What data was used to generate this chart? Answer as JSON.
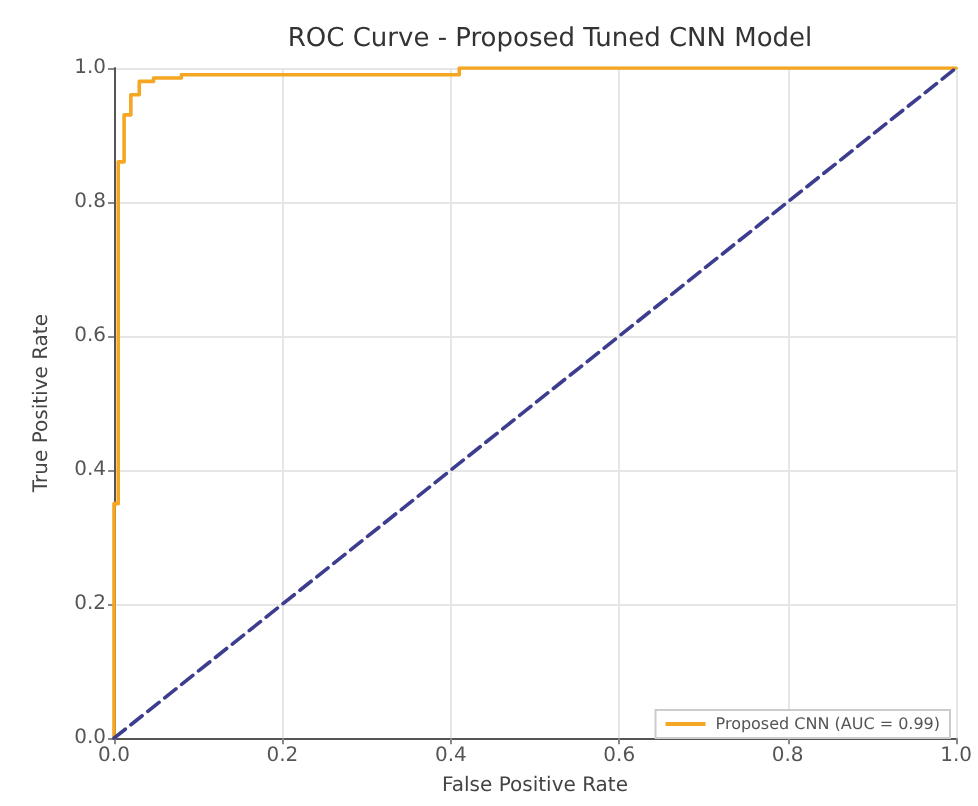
{
  "chart_data": {
    "type": "line",
    "title": "ROC Curve - Proposed Tuned CNN Model",
    "xlabel": "False Positive Rate",
    "ylabel": "True Positive Rate",
    "series": [
      {
        "name": "Proposed CNN (AUC = 0.99)",
        "color": "#f5a623",
        "x": [
          0,
          0,
          0.005,
          0.005,
          0.012,
          0.012,
          0.02,
          0.02,
          0.03,
          0.03,
          0.047,
          0.047,
          0.08,
          0.08,
          0.41,
          0.41,
          1
        ],
        "values": [
          0,
          0.35,
          0.35,
          0.86,
          0.86,
          0.93,
          0.93,
          0.96,
          0.96,
          0.98,
          0.98,
          0.985,
          0.985,
          0.99,
          0.99,
          1,
          1
        ],
        "line_style": "solid"
      },
      {
        "color": "#3d3d8f",
        "x": [
          0,
          1
        ],
        "values": [
          0,
          1
        ],
        "line_style": "dashed"
      }
    ],
    "xlim": [
      0,
      1
    ],
    "ylim": [
      0,
      1
    ],
    "xticks": [
      {
        "value": 0,
        "label": "0.0"
      },
      0.2,
      0.4,
      0.6,
      0.8,
      {
        "value": 1,
        "label": "1.0"
      }
    ],
    "yticks": [
      {
        "value": 0,
        "label": "0.0"
      },
      0.2,
      0.4,
      0.6,
      0.8,
      {
        "value": 1,
        "label": "1.0"
      }
    ],
    "grid": true,
    "legend": "bottom right",
    "marker": "none"
  }
}
